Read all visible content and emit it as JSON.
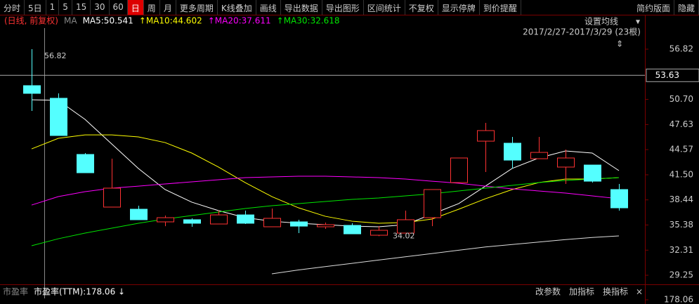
{
  "toolbar": {
    "items": [
      "分时",
      "5日",
      "1",
      "5",
      "15",
      "30",
      "60",
      "日",
      "周",
      "月",
      "更多周期",
      "K线叠加",
      "画线",
      "导出数据",
      "导出图形",
      "区间统计",
      "不复权",
      "显示停牌",
      "到价提醒"
    ],
    "active_index": 7,
    "right": [
      "简约版面",
      "隐藏"
    ]
  },
  "chart_data": {
    "type": "candlestick",
    "adjust_label": "(日线, 前复权)",
    "ma_prefix": "MA",
    "settings_button": "设置均线",
    "range_label": "2017/2/27-2017/3/29 (23根)",
    "up_color": "#ff3232",
    "down_color": "#54ffff",
    "open": [
      52.37,
      50.83,
      43.98,
      37.56,
      37.3,
      35.76,
      36.02,
      35.5,
      36.61,
      35.16,
      35.76,
      35.16,
      35.33,
      34.13,
      34.39,
      36.27,
      40.55,
      45.6,
      45.35,
      43.46,
      42.44,
      42.69,
      39.7
    ],
    "high": [
      56.82,
      51.43,
      44.15,
      43.46,
      37.73,
      36.53,
      36.19,
      37.13,
      37.13,
      37.39,
      36.02,
      35.67,
      35.59,
      35.24,
      37.13,
      39.7,
      43.55,
      47.83,
      46.12,
      46.12,
      44.58,
      42.69,
      40.38
    ],
    "low": [
      49.29,
      46.29,
      41.75,
      37.56,
      36.02,
      35.24,
      35.16,
      35.5,
      35.5,
      35.16,
      34.39,
      34.9,
      34.3,
      34.02,
      34.39,
      35.24,
      40.55,
      41.84,
      42.27,
      43.46,
      40.38,
      40.55,
      37.13
    ],
    "close": [
      51.43,
      46.29,
      41.75,
      39.87,
      36.02,
      36.27,
      35.59,
      36.61,
      35.59,
      36.19,
      35.24,
      35.42,
      34.3,
      34.73,
      36.02,
      39.7,
      43.55,
      46.89,
      43.29,
      44.23,
      43.55,
      40.72,
      37.47
    ],
    "series": [
      {
        "name": "MA5:50.541",
        "color": "#ffffff",
        "values": [
          50.65,
          50.57,
          48.26,
          45.26,
          42.27,
          39.7,
          38.16,
          37.13,
          36.27,
          35.84,
          35.59,
          35.42,
          35.24,
          35.16,
          35.42,
          36.7,
          37.99,
          40.12,
          42.27,
          43.55,
          44.41,
          44.15,
          42.01
        ]
      },
      {
        "name": "↑MA10:44.602",
        "color": "#ffff00",
        "values": [
          44.66,
          45.95,
          46.37,
          46.37,
          46.12,
          45.43,
          44.15,
          42.44,
          40.55,
          38.84,
          37.47,
          36.44,
          35.84,
          35.59,
          35.67,
          36.1,
          37.3,
          38.58,
          39.7,
          40.55,
          40.98,
          40.98,
          41.15
        ]
      },
      {
        "name": "↑MA20:37.611",
        "color": "#ff00ff",
        "values": [
          37.81,
          38.84,
          39.44,
          39.87,
          40.12,
          40.38,
          40.64,
          40.9,
          41.15,
          41.24,
          41.32,
          41.32,
          41.24,
          41.15,
          40.98,
          40.72,
          40.47,
          40.12,
          39.78,
          39.53,
          39.27,
          38.93,
          38.58
        ]
      },
      {
        "name": "↑MA30:32.618",
        "color": "#00e600",
        "values": [
          32.85,
          33.7,
          34.39,
          34.99,
          35.59,
          36.1,
          36.53,
          36.96,
          37.39,
          37.73,
          37.99,
          38.24,
          38.5,
          38.67,
          38.93,
          39.18,
          39.53,
          39.87,
          40.21,
          40.55,
          40.81,
          40.98,
          41.15
        ]
      },
      {
        "color": "#dddddd",
        "values": [
          null,
          null,
          null,
          null,
          null,
          null,
          null,
          null,
          null,
          29.42,
          29.9,
          30.3,
          30.7,
          31.1,
          31.5,
          31.9,
          32.3,
          32.7,
          33.0,
          33.3,
          33.6,
          33.85,
          34.05
        ]
      }
    ],
    "ylim": [
      28.14,
      59.39
    ],
    "yticks": [
      29.25,
      32.31,
      35.38,
      38.44,
      {
        "value": 41.5,
        "label": "41.50"
      },
      44.57,
      47.63,
      {
        "value": 50.7,
        "label": "50.70"
      },
      56.82
    ],
    "last_price": 53.63,
    "indicator": {
      "label": "市盈率",
      "value_label": "市盈率(TTM):178.06 ↓",
      "buttons": [
        "改参数",
        "加指标",
        "换指标"
      ],
      "close_button": "×",
      "ytick": 178.06
    }
  }
}
